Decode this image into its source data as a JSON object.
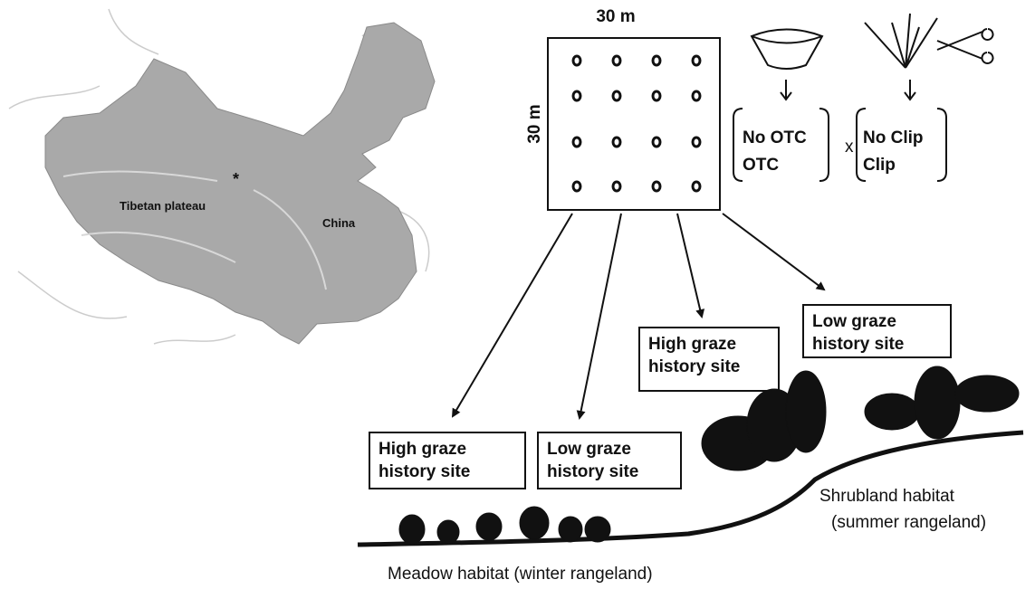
{
  "map": {
    "labels": [
      "Tibetan plateau",
      "China"
    ],
    "marker": "*"
  },
  "plot": {
    "width_label": "30 m",
    "height_label": "30 m"
  },
  "treatments": {
    "otc": [
      "No OTC",
      "OTC"
    ],
    "operator": "x",
    "clip": [
      "No Clip",
      "Clip"
    ]
  },
  "sites": [
    {
      "lines": [
        "High graze",
        "history site"
      ]
    },
    {
      "lines": [
        "Low graze",
        "history site"
      ]
    },
    {
      "lines": [
        "High graze",
        "history site"
      ]
    },
    {
      "lines": [
        "Low graze",
        "history site"
      ]
    }
  ],
  "habitats": {
    "shrubland": [
      "Shrubland habitat",
      "(summer rangeland)"
    ],
    "meadow": "Meadow habitat (winter rangeland)"
  }
}
